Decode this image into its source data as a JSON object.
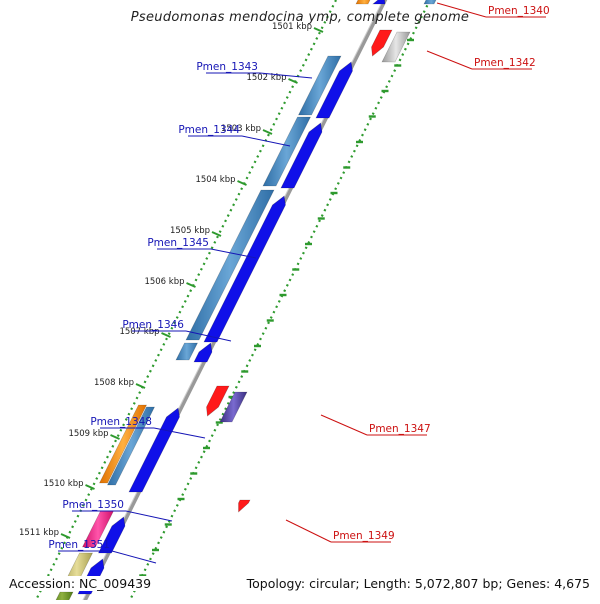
{
  "title": "Pseudomonas mendocina ymp, complete genome",
  "footer": {
    "accession": "Accession: NC_009439",
    "topology": "Topology: circular; Length: 5,072,807 bp; Genes: 4,675"
  },
  "colors": {
    "strand_line": "#999999",
    "ruler_dots": "#2e9a2e",
    "forward_gene": "#1010e8",
    "reverse_gene": "#ff1a1a",
    "label_left": "#1515b5",
    "label_right": "#cc1111"
  },
  "kbp_ticks": [
    "1501 kbp",
    "1502 kbp",
    "1503 kbp",
    "1504 kbp",
    "1505 kbp",
    "1506 kbp",
    "1507 kbp",
    "1508 kbp",
    "1509 kbp",
    "1510 kbp",
    "1511 kbp"
  ],
  "gene_labels_left": [
    "Pmen_1343",
    "Pmen_1344",
    "Pmen_1345",
    "Pmen_1346",
    "Pmen_1348",
    "Pmen_1350",
    "Pmen_1351"
  ],
  "gene_labels_right": [
    "Pmen_1340",
    "Pmen_1342",
    "Pmen_1347",
    "Pmen_1349"
  ]
}
